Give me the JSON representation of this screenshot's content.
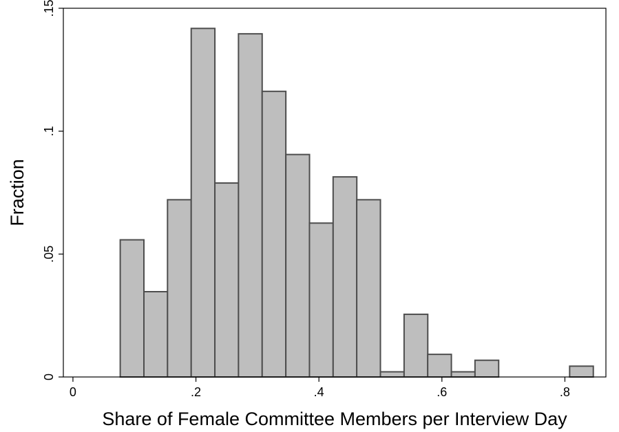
{
  "chart_data": {
    "type": "bar",
    "title": "",
    "xlabel": "Share of Female Committee Members per Interview Day",
    "ylabel": "Fraction",
    "xlim": [
      -0.0156,
      0.8667
    ],
    "ylim": [
      0,
      0.15
    ],
    "x_ticks": [
      {
        "value": 0,
        "label": "0"
      },
      {
        "value": 0.2,
        "label": ".2"
      },
      {
        "value": 0.4,
        "label": ".4"
      },
      {
        "value": 0.6,
        "label": ".6"
      },
      {
        "value": 0.8,
        "label": ".8"
      }
    ],
    "y_ticks": [
      {
        "value": 0,
        "label": "0"
      },
      {
        "value": 0.05,
        "label": ".05"
      },
      {
        "value": 0.1,
        "label": ".1"
      },
      {
        "value": 0.15,
        "label": ".15"
      }
    ],
    "bin_width": 0.0385,
    "bins": [
      {
        "start": 0.0769,
        "value": 0.0558
      },
      {
        "start": 0.1154,
        "value": 0.0347
      },
      {
        "start": 0.1538,
        "value": 0.0721
      },
      {
        "start": 0.1923,
        "value": 0.1418
      },
      {
        "start": 0.2308,
        "value": 0.0789
      },
      {
        "start": 0.2692,
        "value": 0.1396
      },
      {
        "start": 0.3077,
        "value": 0.1162
      },
      {
        "start": 0.3462,
        "value": 0.0905
      },
      {
        "start": 0.3846,
        "value": 0.0626
      },
      {
        "start": 0.4231,
        "value": 0.0814
      },
      {
        "start": 0.4615,
        "value": 0.0721
      },
      {
        "start": 0.5,
        "value": 0.0021
      },
      {
        "start": 0.5385,
        "value": 0.0255
      },
      {
        "start": 0.5769,
        "value": 0.0092
      },
      {
        "start": 0.6154,
        "value": 0.0021
      },
      {
        "start": 0.6538,
        "value": 0.0068
      },
      {
        "start": 0.8077,
        "value": 0.0044
      }
    ],
    "grid": false,
    "legend": "none",
    "colors": {
      "bar_fill": "#bebebe",
      "bar_stroke": "#4d4d4d"
    }
  }
}
